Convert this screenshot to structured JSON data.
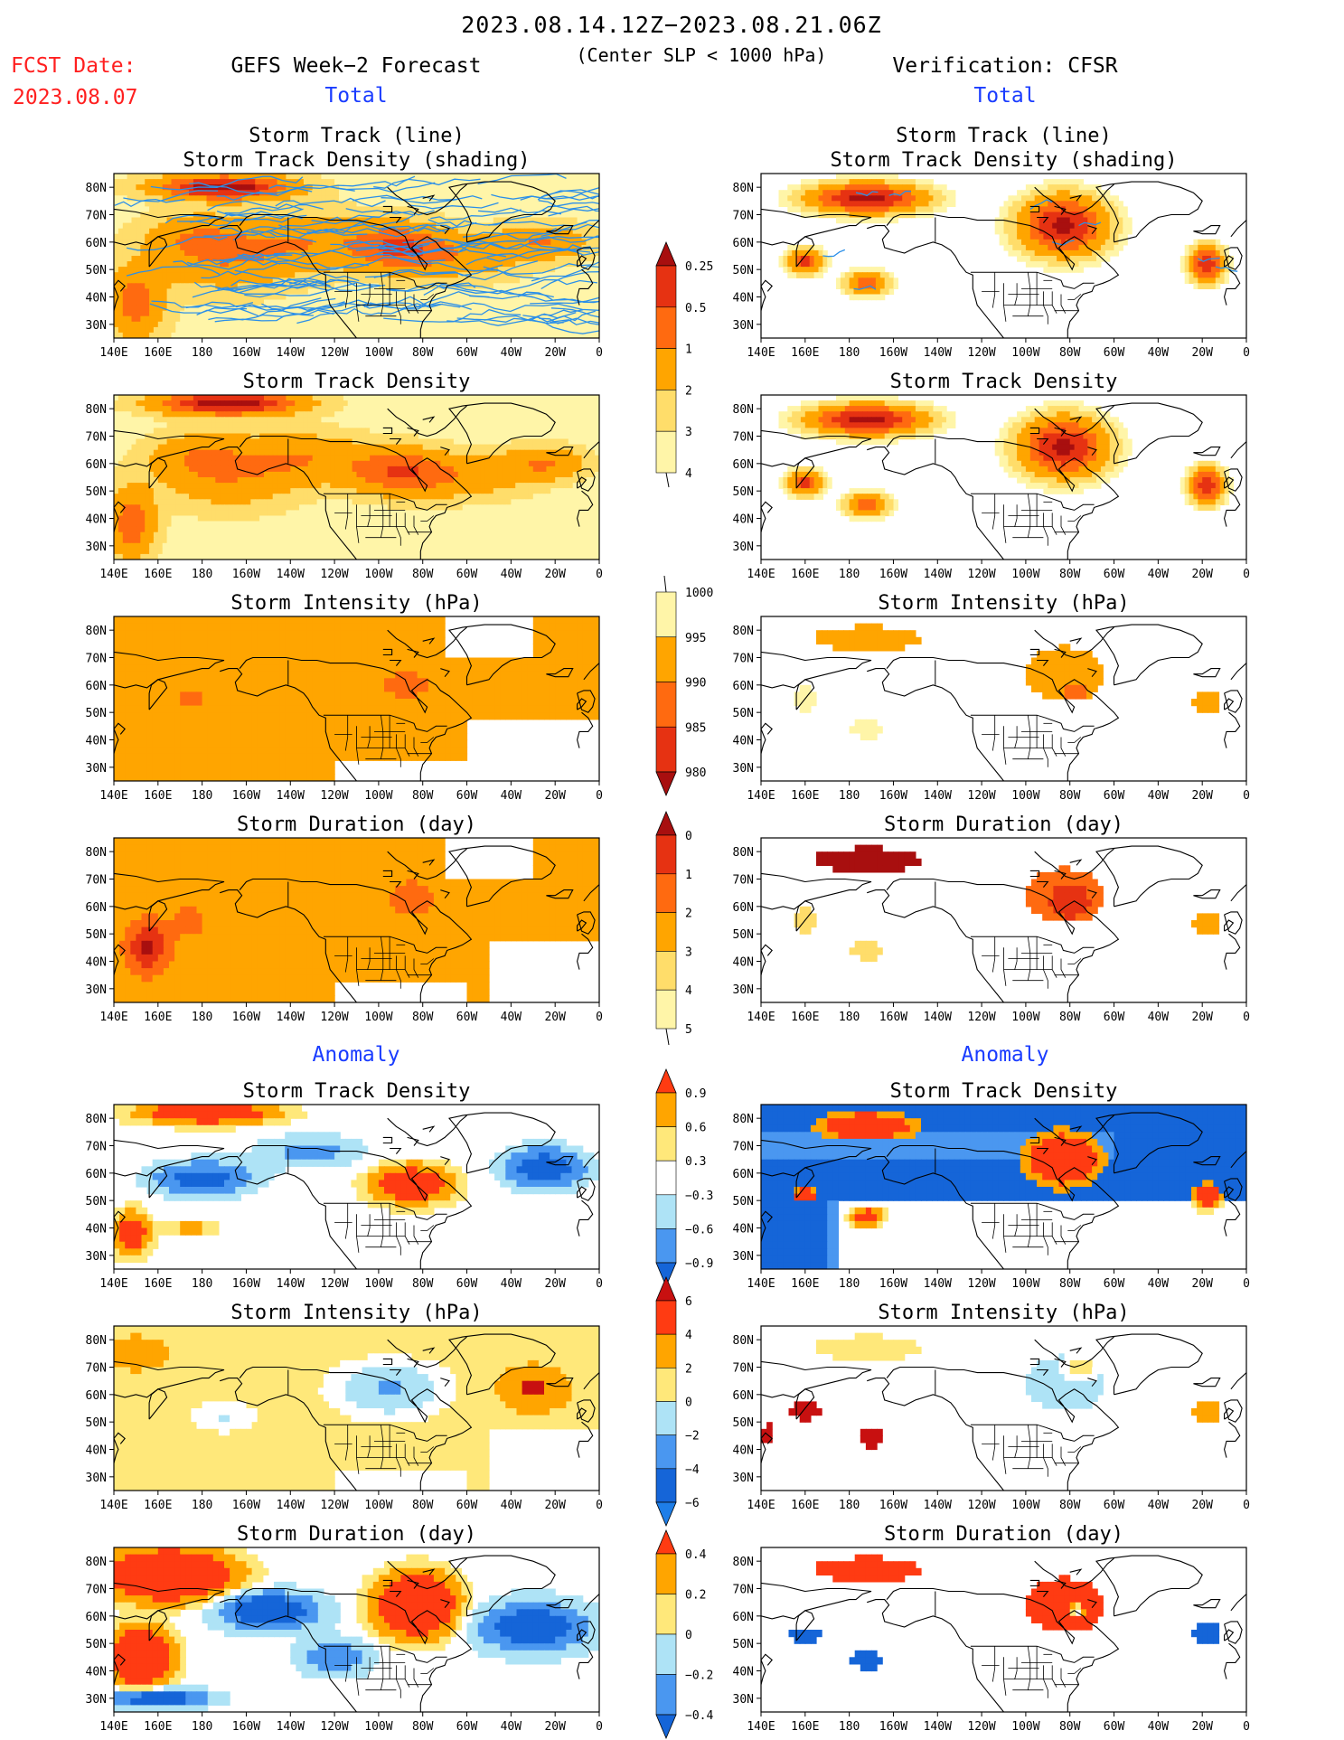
{
  "header": {
    "period": "2023.08.14.12Z−2023.08.21.06Z",
    "fcst_label": "FCST Date:",
    "fcst_date": "2023.08.07",
    "forecast_title": "GEFS Week−2 Forecast",
    "criterion": "(Center SLP < 1000 hPa)",
    "verification": "Verification: CFSR",
    "total_left": "Total",
    "total_right": "Total",
    "anomaly_left": "Anomaly",
    "anomaly_right": "Anomaly"
  },
  "colors": {
    "header_red": "#ff2020",
    "header_blue": "#1a3cff",
    "ocean": "#ffffff",
    "coast": "#000000",
    "track_line": "#2b8fe8",
    "pos": [
      "#fff5a8",
      "#ffdd6a",
      "#ffa500",
      "#ff6a10",
      "#e63212",
      "#a80f0f"
    ],
    "anom": [
      "#1565d8",
      "#4a97f0",
      "#aee3f6",
      "#ffffff",
      "#ffe87a",
      "#ffa500",
      "#ff3b12"
    ]
  },
  "chart_data": [
    {
      "type": "heatmap",
      "id": "fc-track",
      "title": [
        "Storm Track (line)",
        "Storm Track Density (shading)"
      ],
      "column": "GEFS Week−2 Forecast",
      "section": "Total",
      "scale": "density",
      "tracks": true
    },
    {
      "type": "heatmap",
      "id": "ob-track",
      "title": [
        "Storm Track (line)",
        "Storm Track Density (shading)"
      ],
      "column": "Verification: CFSR",
      "section": "Total",
      "scale": "density",
      "tracks": true
    },
    {
      "type": "heatmap",
      "id": "fc-dens",
      "title": [
        "Storm Track Density"
      ],
      "column": "GEFS Week−2 Forecast",
      "section": "Total",
      "scale": "density"
    },
    {
      "type": "heatmap",
      "id": "ob-dens",
      "title": [
        "Storm Track Density"
      ],
      "column": "Verification: CFSR",
      "section": "Total",
      "scale": "density"
    },
    {
      "type": "heatmap",
      "id": "fc-int",
      "title": [
        "Storm Intensity (hPa)"
      ],
      "column": "GEFS Week−2 Forecast",
      "section": "Total",
      "scale": "intensity"
    },
    {
      "type": "heatmap",
      "id": "ob-int",
      "title": [
        "Storm Intensity (hPa)"
      ],
      "column": "Verification: CFSR",
      "section": "Total",
      "scale": "intensity"
    },
    {
      "type": "heatmap",
      "id": "fc-dur",
      "title": [
        "Storm Duration (day)"
      ],
      "column": "GEFS Week−2 Forecast",
      "section": "Total",
      "scale": "duration"
    },
    {
      "type": "heatmap",
      "id": "ob-dur",
      "title": [
        "Storm Duration (day)"
      ],
      "column": "Verification: CFSR",
      "section": "Total",
      "scale": "duration"
    },
    {
      "type": "heatmap",
      "id": "fc-adens",
      "title": [
        "Storm Track Density"
      ],
      "column": "GEFS Week−2 Forecast",
      "section": "Anomaly",
      "scale": "anom_density"
    },
    {
      "type": "heatmap",
      "id": "ob-adens",
      "title": [
        "Storm Track Density"
      ],
      "column": "Verification: CFSR",
      "section": "Anomaly",
      "scale": "anom_density"
    },
    {
      "type": "heatmap",
      "id": "fc-aint",
      "title": [
        "Storm Intensity (hPa)"
      ],
      "column": "GEFS Week−2 Forecast",
      "section": "Anomaly",
      "scale": "anom_intensity"
    },
    {
      "type": "heatmap",
      "id": "ob-aint",
      "title": [
        "Storm Intensity (hPa)"
      ],
      "column": "Verification: CFSR",
      "section": "Anomaly",
      "scale": "anom_intensity"
    },
    {
      "type": "heatmap",
      "id": "fc-adur",
      "title": [
        "Storm Duration (day)"
      ],
      "column": "GEFS Week−2 Forecast",
      "section": "Anomaly",
      "scale": "anom_duration"
    },
    {
      "type": "heatmap",
      "id": "ob-adur",
      "title": [
        "Storm Duration (day)"
      ],
      "column": "Verification: CFSR",
      "section": "Anomaly",
      "scale": "anom_duration"
    }
  ],
  "axes": {
    "lon_ticks": [
      "140E",
      "160E",
      "180",
      "160W",
      "140W",
      "120W",
      "100W",
      "80W",
      "60W",
      "40W",
      "20W",
      "0"
    ],
    "lat_ticks": [
      "80N",
      "70N",
      "60N",
      "50N",
      "40N",
      "30N"
    ],
    "lon_range": [
      140,
      360
    ],
    "lat_range": [
      25,
      85
    ]
  },
  "colorbars": [
    {
      "id": "cb-density",
      "labels": [
        "0.25",
        "0.5",
        "1",
        "2",
        "3",
        "4"
      ]
    },
    {
      "id": "cb-intensity",
      "labels": [
        "1000",
        "995",
        "990",
        "985",
        "980"
      ]
    },
    {
      "id": "cb-duration",
      "labels": [
        "0",
        "1",
        "2",
        "3",
        "4",
        "5"
      ]
    },
    {
      "id": "cb-anom-density",
      "labels": [
        "0.9",
        "0.6",
        "0.3",
        "−0.3",
        "−0.6",
        "−0.9"
      ]
    },
    {
      "id": "cb-anom-intensity",
      "labels": [
        "6",
        "4",
        "2",
        "0",
        "−2",
        "−4",
        "−6"
      ]
    },
    {
      "id": "cb-anom-duration",
      "labels": [
        "0.4",
        "0.2",
        "0",
        "−0.2",
        "−0.4"
      ]
    }
  ]
}
